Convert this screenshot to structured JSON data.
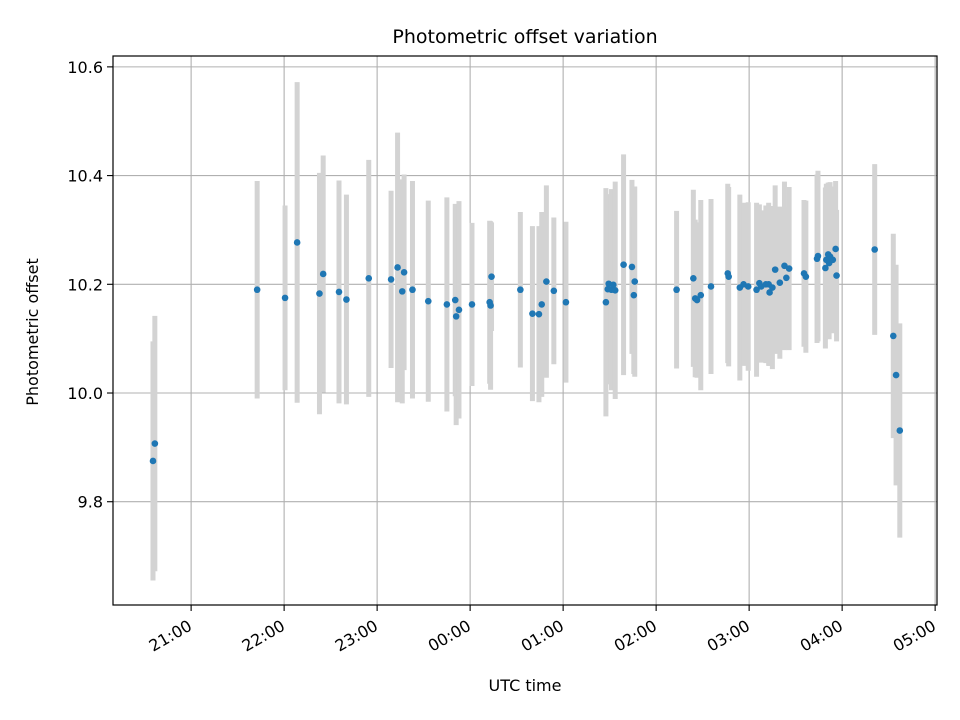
{
  "chart_data": {
    "type": "scatter",
    "title": "Photometric offset variation",
    "xlabel": "UTC time",
    "ylabel": "Photometric offset",
    "x_tick_labels": [
      "21:00",
      "22:00",
      "23:00",
      "00:00",
      "01:00",
      "02:00",
      "03:00",
      "04:00",
      "05:00"
    ],
    "x_tick_hours": [
      21,
      22,
      23,
      24,
      25,
      26,
      27,
      28,
      29
    ],
    "xlim_hours": [
      20.16,
      29.02
    ],
    "y_ticks": [
      9.8,
      10.0,
      10.2,
      10.4,
      10.6
    ],
    "y_tick_labels": [
      "9.8",
      "10.0",
      "10.2",
      "10.4",
      "10.6"
    ],
    "ylim": [
      9.61,
      10.62
    ],
    "grid": true,
    "legend": "none",
    "colors": {
      "marker": "#1f77b4",
      "errorbar": "#d3d3d3",
      "grid": "#b0b0b0"
    },
    "series": [
      {
        "x_hours": [
          20.59,
          20.61,
          21.71,
          22.01,
          22.14,
          22.38,
          22.42,
          22.59,
          22.67,
          22.91,
          23.15,
          23.22,
          23.27,
          23.29,
          23.38,
          23.55,
          23.75,
          23.84,
          23.85,
          23.88,
          24.02,
          24.21,
          24.22,
          24.23,
          24.54,
          24.67,
          24.74,
          24.77,
          24.82,
          24.9,
          25.03,
          25.46,
          25.48,
          25.49,
          25.52,
          25.54,
          25.56,
          25.65,
          25.74,
          25.76,
          25.77,
          26.22,
          26.4,
          26.42,
          26.44,
          26.48,
          26.59,
          26.77,
          26.78,
          26.9,
          26.94,
          26.99,
          27.08,
          27.11,
          27.13,
          27.18,
          27.21,
          27.22,
          27.25,
          27.28,
          27.33,
          27.38,
          27.4,
          27.43,
          27.59,
          27.61,
          27.73,
          27.74,
          27.82,
          27.83,
          27.85,
          27.86,
          27.87,
          27.9,
          27.93,
          27.94,
          28.35,
          28.55,
          28.58,
          28.62
        ],
        "y": [
          9.875,
          9.907,
          10.19,
          10.175,
          10.277,
          10.183,
          10.219,
          10.186,
          10.172,
          10.211,
          10.209,
          10.231,
          10.187,
          10.222,
          10.19,
          10.169,
          10.163,
          10.171,
          10.141,
          10.153,
          10.163,
          10.167,
          10.161,
          10.214,
          10.19,
          10.146,
          10.145,
          10.163,
          10.205,
          10.188,
          10.167,
          10.167,
          10.191,
          10.201,
          10.19,
          10.199,
          10.189,
          10.236,
          10.232,
          10.18,
          10.205,
          10.19,
          10.211,
          10.174,
          10.171,
          10.18,
          10.196,
          10.22,
          10.214,
          10.194,
          10.2,
          10.196,
          10.19,
          10.202,
          10.196,
          10.2,
          10.2,
          10.185,
          10.194,
          10.227,
          10.203,
          10.234,
          10.212,
          10.229,
          10.22,
          10.214,
          10.247,
          10.252,
          10.23,
          10.245,
          10.255,
          10.239,
          10.251,
          10.245,
          10.265,
          10.216,
          10.264,
          10.105,
          10.033,
          9.931
        ],
        "yerr": [
          0.22,
          0.235,
          0.2,
          0.17,
          0.295,
          0.222,
          0.218,
          0.205,
          0.193,
          0.218,
          0.163,
          0.248,
          0.206,
          0.18,
          0.2,
          0.185,
          0.197,
          0.177,
          0.2,
          0.2,
          0.15,
          0.15,
          0.155,
          0.1,
          0.143,
          0.161,
          0.162,
          0.17,
          0.177,
          0.135,
          0.148,
          0.21,
          0.175,
          0.155,
          0.185,
          0.175,
          0.2,
          0.203,
          0.16,
          0.145,
          0.175,
          0.145,
          0.163,
          0.145,
          0.143,
          0.175,
          0.161,
          0.165,
          0.165,
          0.171,
          0.15,
          0.155,
          0.16,
          0.145,
          0.14,
          0.145,
          0.15,
          0.135,
          0.15,
          0.155,
          0.14,
          0.155,
          0.13,
          0.15,
          0.135,
          0.14,
          0.155,
          0.157,
          0.148,
          0.14,
          0.132,
          0.14,
          0.137,
          0.135,
          0.125,
          0.121,
          0.157,
          0.188,
          0.203,
          0.197
        ]
      }
    ]
  }
}
